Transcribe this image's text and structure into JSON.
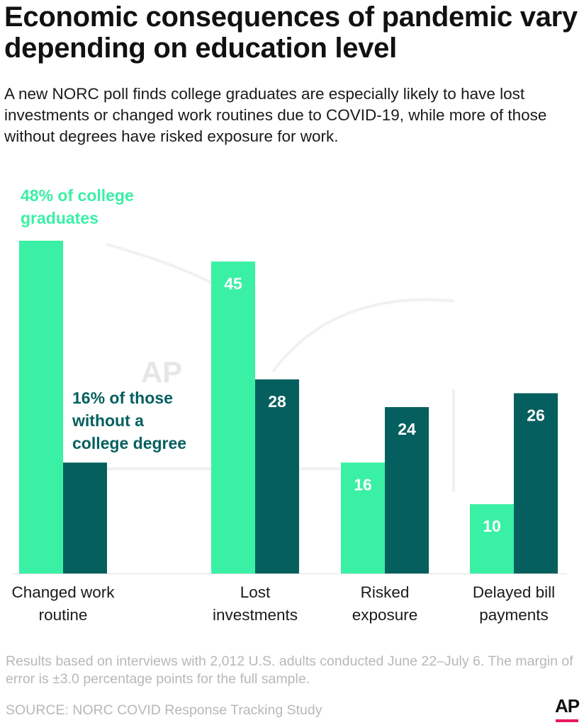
{
  "header": {
    "title": "Economic consequences of pandemic vary depending on education level",
    "subtitle": "A new NORC poll finds college graduates are especially likely to have lost investments or changed work routines due to COVID-19, while more of those without degrees have risked exposure for work."
  },
  "chart_data": {
    "type": "bar",
    "categories": [
      "Changed work routine",
      "Lost investments",
      "Risked exposure",
      "Delayed bill payments"
    ],
    "category_lines": [
      [
        "Changed work",
        "routine"
      ],
      [
        "Lost",
        "investments"
      ],
      [
        "Risked",
        "exposure"
      ],
      [
        "Delayed bill",
        "payments"
      ]
    ],
    "series": [
      {
        "values": [
          48,
          45,
          16,
          10
        ],
        "color": "#3af0a4"
      },
      {
        "values": [
          16,
          28,
          24,
          26
        ],
        "color": "#055f5f"
      }
    ],
    "data_labels": [
      [
        "",
        "45",
        "16",
        "10"
      ],
      [
        "",
        "28",
        "24",
        "26"
      ]
    ],
    "annotations": [
      {
        "lines": [
          "48% of college",
          "graduates"
        ],
        "color": "#3af0a4"
      },
      {
        "lines": [
          "16% of those",
          "without a",
          "college degree"
        ],
        "color": "#055f5f"
      }
    ],
    "ylim": [
      0,
      48
    ],
    "grid": false,
    "watermark": "AP"
  },
  "footer": {
    "note": "Results based on interviews with 2,012 U.S. adults conducted June 22–July 6. The margin of error is ±3.0 percentage points for the full sample.",
    "source": "SOURCE: NORC COVID Response Tracking Study",
    "logo_text": "AP",
    "logo_color": "#e8195b"
  }
}
